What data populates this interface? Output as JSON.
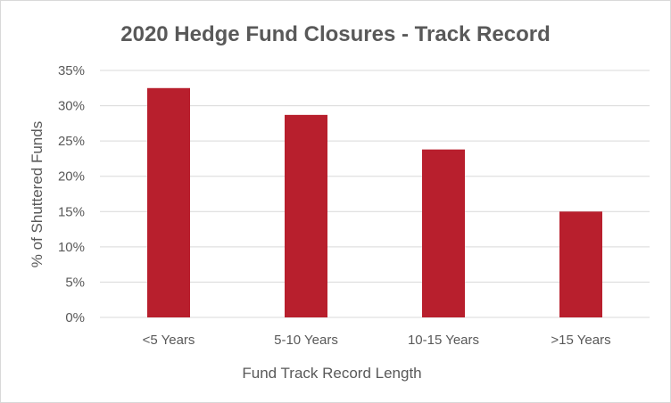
{
  "chart_data": {
    "type": "bar",
    "title": "2020 Hedge Fund Closures - Track Record",
    "xlabel": "Fund Track Record Length",
    "ylabel": "% of Shuttered Funds",
    "categories": [
      "<5 Years",
      "5-10 Years",
      "10-15 Years",
      ">15 Years"
    ],
    "values": [
      32.5,
      28.7,
      23.8,
      15.0
    ],
    "ylim": [
      0,
      35
    ],
    "yticks": [
      "0%",
      "5%",
      "10%",
      "15%",
      "20%",
      "25%",
      "30%",
      "35%"
    ],
    "grid": true,
    "legend": "none",
    "bar_color": "#B81F2D"
  }
}
